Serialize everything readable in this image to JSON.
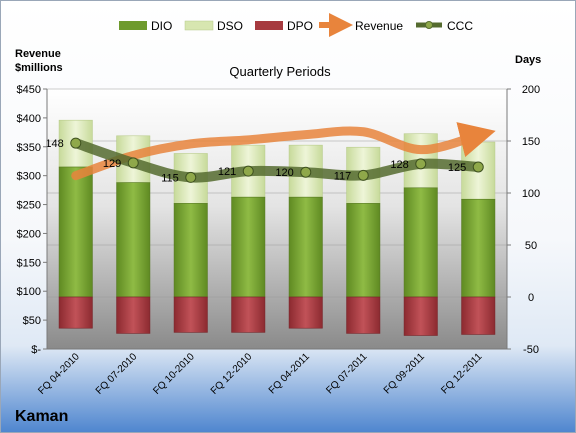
{
  "company": "Kaman",
  "chart_data": {
    "type": "bar",
    "title": "Quarterly Periods",
    "left_axis_title": [
      "Revenue",
      "$millions"
    ],
    "right_axis_title": "Days",
    "left_ticks": [
      "$-",
      "$50",
      "$100",
      "$150",
      "$200",
      "$250",
      "$300",
      "$350",
      "$400",
      "$450"
    ],
    "right_ticks": [
      "-50",
      "0",
      "50",
      "100",
      "150",
      "200"
    ],
    "left_ylim": [
      0,
      450
    ],
    "right_ylim": [
      -50,
      200
    ],
    "categories": [
      "FQ 04-2010",
      "FQ 07-2010",
      "FQ 10-2010",
      "FQ 12-2010",
      "FQ 04-2011",
      "FQ 07-2011",
      "FQ 09-2011",
      "FQ 12-2011"
    ],
    "legend": [
      "DIO",
      "DSO",
      "DPO",
      "Revenue",
      "CCC"
    ],
    "colors": {
      "DIO": "#6e9a2d",
      "DSO": "#d7e6b0",
      "DPO": "#a63a3f",
      "Revenue": "#e8843c",
      "CCC": "#556b2f"
    },
    "series": [
      {
        "name": "DIO",
        "axis": "right",
        "values": [
          125,
          110,
          90,
          96,
          96,
          90,
          105,
          94
        ]
      },
      {
        "name": "DSO",
        "axis": "right",
        "values": [
          45,
          45,
          48,
          50,
          50,
          54,
          52,
          55
        ]
      },
      {
        "name": "DPO",
        "axis": "right",
        "values": [
          -30,
          -35,
          -34,
          -34,
          -30,
          -35,
          -37,
          -36
        ]
      },
      {
        "name": "Revenue",
        "axis": "left",
        "values": [
          300,
          335,
          355,
          362,
          371,
          376,
          345,
          370
        ]
      },
      {
        "name": "CCC",
        "axis": "right",
        "values": [
          148,
          129,
          115,
          121,
          120,
          117,
          128,
          125
        ]
      }
    ],
    "ccc_labels": [
      "148",
      "129",
      "115",
      "121",
      "120",
      "117",
      "128",
      "125"
    ]
  }
}
